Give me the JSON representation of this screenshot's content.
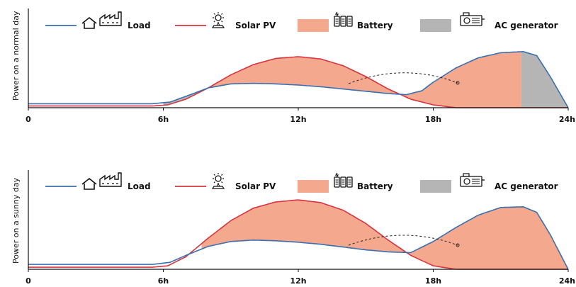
{
  "chart_data": [
    {
      "type": "area",
      "ylabel": "Power on a normal day",
      "x_ticks": [
        "0",
        "6h",
        "12h",
        "18h",
        "24h"
      ],
      "xlim": [
        0,
        24
      ],
      "ylim": [
        0,
        1
      ],
      "series": [
        {
          "name": "Load",
          "type": "line",
          "color": "#3a6fb0",
          "x": [
            0,
            5.5,
            6.3,
            7,
            8,
            9,
            10,
            11,
            12,
            13,
            14,
            15,
            16,
            16.8,
            17.5,
            18,
            19,
            20,
            21,
            22,
            22.6,
            23.2,
            24
          ],
          "y": [
            0.07,
            0.07,
            0.1,
            0.2,
            0.35,
            0.42,
            0.43,
            0.42,
            0.4,
            0.37,
            0.33,
            0.29,
            0.25,
            0.23,
            0.3,
            0.45,
            0.7,
            0.88,
            0.97,
            0.99,
            0.92,
            0.55,
            0.0
          ]
        },
        {
          "name": "Solar PV",
          "type": "line",
          "color": "#d9343f",
          "x": [
            0,
            5.5,
            6.2,
            7,
            8,
            9,
            10,
            11,
            12,
            13,
            14,
            15,
            16,
            17,
            18,
            19,
            24
          ],
          "y": [
            0.03,
            0.03,
            0.05,
            0.15,
            0.35,
            0.58,
            0.76,
            0.87,
            0.9,
            0.86,
            0.74,
            0.55,
            0.33,
            0.15,
            0.05,
            0.0,
            0.0
          ]
        }
      ],
      "fills": [
        {
          "name": "Battery",
          "color": "#f4a88e",
          "spans": [
            [
              8.2,
              16.8
            ],
            [
              16.8,
              21.9
            ]
          ]
        },
        {
          "name": "AC generator",
          "color": "#b5b5b5",
          "spans": [
            [
              6.0,
              8.2
            ],
            [
              21.9,
              24
            ]
          ]
        }
      ],
      "legend": [
        "Load",
        "Solar PV",
        "Battery",
        "AC generator"
      ],
      "legend_placement": "top",
      "annotation": "dashed arc from solar surplus to evening battery discharge"
    },
    {
      "type": "area",
      "ylabel": "Power on a sunny day",
      "x_ticks": [
        "0",
        "6h",
        "12h",
        "18h",
        "24h"
      ],
      "xlim": [
        0,
        24
      ],
      "ylim": [
        0,
        1
      ],
      "series": [
        {
          "name": "Load",
          "type": "line",
          "color": "#3a6fb0",
          "x": [
            0,
            5.5,
            6.3,
            7,
            8,
            9,
            10,
            11,
            12,
            13,
            14,
            15,
            16,
            17,
            18,
            19,
            20,
            21,
            22,
            22.6,
            23.2,
            24
          ],
          "y": [
            0.07,
            0.07,
            0.1,
            0.2,
            0.33,
            0.4,
            0.42,
            0.41,
            0.39,
            0.36,
            0.32,
            0.28,
            0.25,
            0.24,
            0.4,
            0.6,
            0.78,
            0.89,
            0.9,
            0.82,
            0.5,
            0.0
          ]
        },
        {
          "name": "Solar PV",
          "type": "line",
          "color": "#d9343f",
          "x": [
            0,
            5.5,
            6.2,
            7,
            8,
            9,
            10,
            11,
            12,
            13,
            14,
            15,
            16,
            17,
            18,
            19,
            24
          ],
          "y": [
            0.03,
            0.03,
            0.05,
            0.18,
            0.45,
            0.7,
            0.88,
            0.97,
            1.0,
            0.96,
            0.85,
            0.66,
            0.42,
            0.2,
            0.05,
            0.0,
            0.0
          ]
        }
      ],
      "fills": [
        {
          "name": "Battery",
          "color": "#f4a88e",
          "spans": [
            [
              7.7,
              17.1
            ],
            [
              17.1,
              24
            ]
          ]
        }
      ],
      "legend": [
        "Load",
        "Solar PV",
        "Battery",
        "AC generator"
      ],
      "legend_placement": "top",
      "annotation": "dashed arc from solar surplus to evening battery discharge"
    }
  ],
  "legend": {
    "load": "Load",
    "solar": "Solar PV",
    "battery": "Battery",
    "generator": "AC generator",
    "icons": [
      "house-icon",
      "factory-icon",
      "sun-icon",
      "solar-panel-icon",
      "battery-icon",
      "generator-icon"
    ]
  },
  "colors": {
    "load": "#3a6fb0",
    "solar": "#d9343f",
    "battery": "#f4a88e",
    "generator": "#b5b5b5",
    "axis": "#111111"
  }
}
